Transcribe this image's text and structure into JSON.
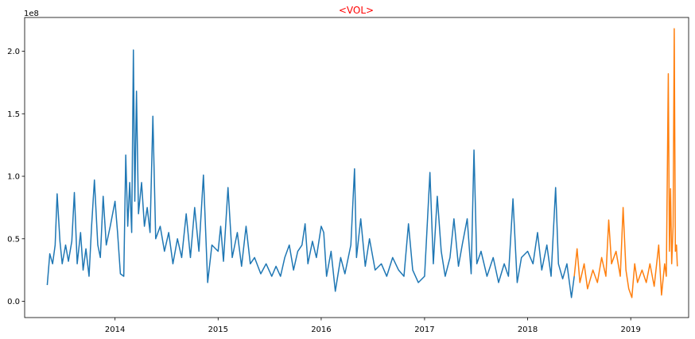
{
  "chart_data": {
    "type": "line",
    "title": "<VOL>",
    "title_color": "#ff0000",
    "xlabel": "",
    "ylabel": "",
    "y_offset_label": "1e8",
    "y_scale_factor": 100000000,
    "xlim": [
      "2013-02-15",
      "2019-07-25"
    ],
    "ylim": [
      -13000000,
      227000000
    ],
    "x_ticks": [
      {
        "date": "2014-01-01",
        "label": "2014"
      },
      {
        "date": "2015-01-01",
        "label": "2015"
      },
      {
        "date": "2016-01-01",
        "label": "2016"
      },
      {
        "date": "2017-01-01",
        "label": "2017"
      },
      {
        "date": "2018-01-01",
        "label": "2018"
      },
      {
        "date": "2019-01-01",
        "label": "2019"
      }
    ],
    "y_ticks": [
      {
        "value": 0,
        "label": "0.0"
      },
      {
        "value": 50000000,
        "label": "0.5"
      },
      {
        "value": 100000000,
        "label": "1.0"
      },
      {
        "value": 150000000,
        "label": "1.5"
      },
      {
        "value": 200000000,
        "label": "2.0"
      }
    ],
    "grid": false,
    "legend": "none",
    "series": [
      {
        "color": "#1f77b4",
        "points": [
          [
            "2013-05-06",
            13000000
          ],
          [
            "2013-05-15",
            38000000
          ],
          [
            "2013-05-25",
            30000000
          ],
          [
            "2013-06-03",
            45000000
          ],
          [
            "2013-06-10",
            86000000
          ],
          [
            "2013-06-20",
            48000000
          ],
          [
            "2013-06-28",
            30000000
          ],
          [
            "2013-07-10",
            45000000
          ],
          [
            "2013-07-20",
            32000000
          ],
          [
            "2013-08-01",
            48000000
          ],
          [
            "2013-08-10",
            87000000
          ],
          [
            "2013-08-20",
            30000000
          ],
          [
            "2013-09-01",
            55000000
          ],
          [
            "2013-09-10",
            25000000
          ],
          [
            "2013-09-20",
            42000000
          ],
          [
            "2013-10-01",
            20000000
          ],
          [
            "2013-10-10",
            60000000
          ],
          [
            "2013-10-20",
            97000000
          ],
          [
            "2013-11-01",
            45000000
          ],
          [
            "2013-11-10",
            35000000
          ],
          [
            "2013-11-20",
            84000000
          ],
          [
            "2013-12-01",
            45000000
          ],
          [
            "2013-12-15",
            60000000
          ],
          [
            "2014-01-01",
            80000000
          ],
          [
            "2014-01-10",
            55000000
          ],
          [
            "2014-01-20",
            22000000
          ],
          [
            "2014-02-01",
            20000000
          ],
          [
            "2014-02-08",
            117000000
          ],
          [
            "2014-02-15",
            60000000
          ],
          [
            "2014-02-22",
            95000000
          ],
          [
            "2014-03-01",
            55000000
          ],
          [
            "2014-03-07",
            201000000
          ],
          [
            "2014-03-12",
            80000000
          ],
          [
            "2014-03-18",
            168000000
          ],
          [
            "2014-03-25",
            70000000
          ],
          [
            "2014-04-05",
            95000000
          ],
          [
            "2014-04-15",
            60000000
          ],
          [
            "2014-04-25",
            75000000
          ],
          [
            "2014-05-05",
            55000000
          ],
          [
            "2014-05-15",
            148000000
          ],
          [
            "2014-05-25",
            50000000
          ],
          [
            "2014-06-10",
            60000000
          ],
          [
            "2014-06-25",
            40000000
          ],
          [
            "2014-07-10",
            55000000
          ],
          [
            "2014-07-25",
            30000000
          ],
          [
            "2014-08-10",
            50000000
          ],
          [
            "2014-08-25",
            35000000
          ],
          [
            "2014-09-10",
            70000000
          ],
          [
            "2014-09-25",
            35000000
          ],
          [
            "2014-10-10",
            75000000
          ],
          [
            "2014-10-25",
            40000000
          ],
          [
            "2014-11-10",
            101000000
          ],
          [
            "2014-11-25",
            15000000
          ],
          [
            "2014-12-10",
            45000000
          ],
          [
            "2015-01-01",
            40000000
          ],
          [
            "2015-01-10",
            60000000
          ],
          [
            "2015-01-20",
            32000000
          ],
          [
            "2015-02-05",
            91000000
          ],
          [
            "2015-02-20",
            35000000
          ],
          [
            "2015-03-10",
            55000000
          ],
          [
            "2015-03-25",
            28000000
          ],
          [
            "2015-04-10",
            60000000
          ],
          [
            "2015-04-25",
            30000000
          ],
          [
            "2015-05-10",
            35000000
          ],
          [
            "2015-06-01",
            22000000
          ],
          [
            "2015-06-20",
            30000000
          ],
          [
            "2015-07-10",
            20000000
          ],
          [
            "2015-07-25",
            28000000
          ],
          [
            "2015-08-10",
            20000000
          ],
          [
            "2015-08-25",
            35000000
          ],
          [
            "2015-09-10",
            45000000
          ],
          [
            "2015-09-25",
            25000000
          ],
          [
            "2015-10-10",
            40000000
          ],
          [
            "2015-10-25",
            45000000
          ],
          [
            "2015-11-05",
            62000000
          ],
          [
            "2015-11-15",
            30000000
          ],
          [
            "2015-12-01",
            48000000
          ],
          [
            "2015-12-15",
            35000000
          ],
          [
            "2016-01-01",
            60000000
          ],
          [
            "2016-01-10",
            55000000
          ],
          [
            "2016-01-20",
            20000000
          ],
          [
            "2016-02-05",
            40000000
          ],
          [
            "2016-02-20",
            8000000
          ],
          [
            "2016-03-10",
            35000000
          ],
          [
            "2016-03-25",
            22000000
          ],
          [
            "2016-04-15",
            45000000
          ],
          [
            "2016-04-28",
            106000000
          ],
          [
            "2016-05-05",
            35000000
          ],
          [
            "2016-05-20",
            66000000
          ],
          [
            "2016-06-05",
            28000000
          ],
          [
            "2016-06-20",
            50000000
          ],
          [
            "2016-07-10",
            25000000
          ],
          [
            "2016-08-01",
            30000000
          ],
          [
            "2016-08-20",
            20000000
          ],
          [
            "2016-09-10",
            35000000
          ],
          [
            "2016-10-01",
            25000000
          ],
          [
            "2016-10-20",
            20000000
          ],
          [
            "2016-11-05",
            62000000
          ],
          [
            "2016-11-20",
            25000000
          ],
          [
            "2016-12-10",
            15000000
          ],
          [
            "2017-01-01",
            20000000
          ],
          [
            "2017-01-20",
            103000000
          ],
          [
            "2017-02-01",
            30000000
          ],
          [
            "2017-02-15",
            84000000
          ],
          [
            "2017-03-01",
            40000000
          ],
          [
            "2017-03-15",
            20000000
          ],
          [
            "2017-04-01",
            35000000
          ],
          [
            "2017-04-15",
            66000000
          ],
          [
            "2017-05-01",
            28000000
          ],
          [
            "2017-05-15",
            46000000
          ],
          [
            "2017-06-01",
            66000000
          ],
          [
            "2017-06-15",
            22000000
          ],
          [
            "2017-06-25",
            121000000
          ],
          [
            "2017-07-05",
            30000000
          ],
          [
            "2017-07-20",
            40000000
          ],
          [
            "2017-08-10",
            20000000
          ],
          [
            "2017-09-01",
            35000000
          ],
          [
            "2017-09-20",
            15000000
          ],
          [
            "2017-10-10",
            30000000
          ],
          [
            "2017-10-25",
            20000000
          ],
          [
            "2017-11-10",
            82000000
          ],
          [
            "2017-11-25",
            15000000
          ],
          [
            "2017-12-10",
            35000000
          ],
          [
            "2018-01-01",
            40000000
          ],
          [
            "2018-01-20",
            30000000
          ],
          [
            "2018-02-05",
            55000000
          ],
          [
            "2018-02-20",
            25000000
          ],
          [
            "2018-03-10",
            45000000
          ],
          [
            "2018-03-25",
            20000000
          ],
          [
            "2018-04-10",
            91000000
          ],
          [
            "2018-04-20",
            30000000
          ],
          [
            "2018-05-05",
            18000000
          ],
          [
            "2018-05-20",
            30000000
          ],
          [
            "2018-06-05",
            3000000
          ],
          [
            "2018-06-15",
            20000000
          ]
        ]
      },
      {
        "color": "#ff7f0e",
        "points": [
          [
            "2018-06-15",
            20000000
          ],
          [
            "2018-06-25",
            42000000
          ],
          [
            "2018-07-05",
            15000000
          ],
          [
            "2018-07-20",
            30000000
          ],
          [
            "2018-08-01",
            10000000
          ],
          [
            "2018-08-20",
            25000000
          ],
          [
            "2018-09-05",
            15000000
          ],
          [
            "2018-09-20",
            35000000
          ],
          [
            "2018-10-05",
            20000000
          ],
          [
            "2018-10-15",
            65000000
          ],
          [
            "2018-10-25",
            30000000
          ],
          [
            "2018-11-10",
            40000000
          ],
          [
            "2018-11-25",
            20000000
          ],
          [
            "2018-12-05",
            75000000
          ],
          [
            "2018-12-15",
            25000000
          ],
          [
            "2018-12-25",
            10000000
          ],
          [
            "2019-01-05",
            3000000
          ],
          [
            "2019-01-15",
            30000000
          ],
          [
            "2019-01-25",
            15000000
          ],
          [
            "2019-02-10",
            25000000
          ],
          [
            "2019-02-25",
            15000000
          ],
          [
            "2019-03-10",
            30000000
          ],
          [
            "2019-03-25",
            12000000
          ],
          [
            "2019-04-10",
            45000000
          ],
          [
            "2019-04-20",
            5000000
          ],
          [
            "2019-05-01",
            30000000
          ],
          [
            "2019-05-07",
            20000000
          ],
          [
            "2019-05-14",
            182000000
          ],
          [
            "2019-05-18",
            40000000
          ],
          [
            "2019-05-22",
            90000000
          ],
          [
            "2019-05-26",
            30000000
          ],
          [
            "2019-05-31",
            60000000
          ],
          [
            "2019-06-04",
            218000000
          ],
          [
            "2019-06-08",
            40000000
          ],
          [
            "2019-06-12",
            45000000
          ],
          [
            "2019-06-15",
            28000000
          ]
        ]
      }
    ]
  }
}
